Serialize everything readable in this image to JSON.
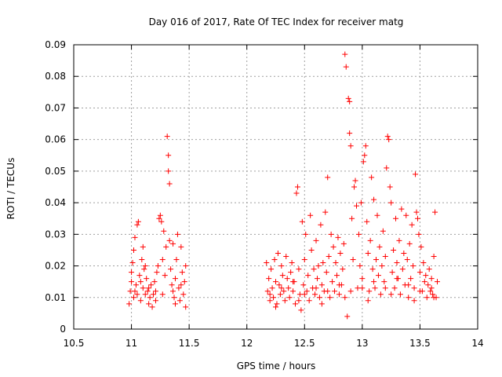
{
  "chart_data": {
    "type": "scatter",
    "title": "Day 016 of 2017, Rate Of TEC Index for receiver matg",
    "xlabel": "GPS time / hours",
    "ylabel": "ROTI / TECUs",
    "xlim": [
      10.5,
      14
    ],
    "ylim": [
      0,
      0.09
    ],
    "xticks": [
      10.5,
      11,
      11.5,
      12,
      12.5,
      13,
      13.5,
      14
    ],
    "xtick_labels": [
      "10.5",
      "11",
      "11.5",
      "12",
      "12.5",
      "13",
      "13.5",
      "14"
    ],
    "yticks": [
      0,
      0.01,
      0.02,
      0.03,
      0.04,
      0.05,
      0.06,
      0.07,
      0.08,
      0.09
    ],
    "ytick_labels": [
      "0",
      "0.01",
      "0.02",
      "0.03",
      "0.04",
      "0.05",
      "0.06",
      "0.07",
      "0.08",
      "0.09"
    ],
    "grid": true,
    "marker": "+",
    "marker_color": "#ff0000",
    "series": [
      {
        "name": "ROTI",
        "points": [
          [
            10.98,
            0.008
          ],
          [
            10.99,
            0.012
          ],
          [
            11.0,
            0.015
          ],
          [
            11.0,
            0.018
          ],
          [
            11.01,
            0.021
          ],
          [
            11.02,
            0.01
          ],
          [
            11.02,
            0.025
          ],
          [
            11.03,
            0.029
          ],
          [
            11.04,
            0.014
          ],
          [
            11.05,
            0.011
          ],
          [
            11.05,
            0.033
          ],
          [
            11.06,
            0.034
          ],
          [
            11.07,
            0.017
          ],
          [
            11.08,
            0.009
          ],
          [
            11.09,
            0.022
          ],
          [
            11.1,
            0.013
          ],
          [
            11.1,
            0.026
          ],
          [
            11.11,
            0.019
          ],
          [
            11.12,
            0.011
          ],
          [
            11.13,
            0.016
          ],
          [
            11.14,
            0.012
          ],
          [
            11.15,
            0.008
          ],
          [
            11.16,
            0.01
          ],
          [
            11.17,
            0.014
          ],
          [
            11.18,
            0.007
          ],
          [
            11.19,
            0.011
          ],
          [
            11.2,
            0.015
          ],
          [
            11.21,
            0.012
          ],
          [
            11.22,
            0.018
          ],
          [
            11.23,
            0.02
          ],
          [
            11.24,
            0.035
          ],
          [
            11.25,
            0.036
          ],
          [
            11.26,
            0.034
          ],
          [
            11.27,
            0.022
          ],
          [
            11.28,
            0.031
          ],
          [
            11.29,
            0.017
          ],
          [
            11.3,
            0.026
          ],
          [
            11.31,
            0.061
          ],
          [
            11.32,
            0.055
          ],
          [
            11.32,
            0.05
          ],
          [
            11.33,
            0.046
          ],
          [
            11.33,
            0.028
          ],
          [
            11.34,
            0.019
          ],
          [
            11.35,
            0.014
          ],
          [
            11.36,
            0.027
          ],
          [
            11.37,
            0.01
          ],
          [
            11.38,
            0.016
          ],
          [
            11.39,
            0.022
          ],
          [
            11.4,
            0.03
          ],
          [
            11.41,
            0.013
          ],
          [
            11.42,
            0.009
          ],
          [
            11.43,
            0.026
          ],
          [
            11.44,
            0.018
          ],
          [
            11.45,
            0.011
          ],
          [
            11.46,
            0.015
          ],
          [
            11.47,
            0.007
          ],
          [
            11.47,
            0.02
          ],
          [
            11.03,
            0.012
          ],
          [
            11.08,
            0.015
          ],
          [
            11.15,
            0.013
          ],
          [
            11.21,
            0.009
          ],
          [
            11.27,
            0.011
          ],
          [
            11.36,
            0.012
          ],
          [
            11.43,
            0.014
          ],
          [
            11.12,
            0.02
          ],
          [
            11.38,
            0.008
          ],
          [
            12.17,
            0.021
          ],
          [
            12.18,
            0.012
          ],
          [
            12.19,
            0.016
          ],
          [
            12.2,
            0.009
          ],
          [
            12.21,
            0.019
          ],
          [
            12.22,
            0.013
          ],
          [
            12.23,
            0.01
          ],
          [
            12.24,
            0.022
          ],
          [
            12.25,
            0.015
          ],
          [
            12.26,
            0.008
          ],
          [
            12.27,
            0.024
          ],
          [
            12.28,
            0.014
          ],
          [
            12.29,
            0.011
          ],
          [
            12.3,
            0.02
          ],
          [
            12.31,
            0.017
          ],
          [
            12.32,
            0.012
          ],
          [
            12.33,
            0.009
          ],
          [
            12.34,
            0.023
          ],
          [
            12.35,
            0.016
          ],
          [
            12.36,
            0.013
          ],
          [
            12.37,
            0.01
          ],
          [
            12.38,
            0.018
          ],
          [
            12.39,
            0.021
          ],
          [
            12.4,
            0.012
          ],
          [
            12.41,
            0.015
          ],
          [
            12.42,
            0.008
          ],
          [
            12.43,
            0.043
          ],
          [
            12.44,
            0.045
          ],
          [
            12.45,
            0.019
          ],
          [
            12.46,
            0.011
          ],
          [
            12.47,
            0.006
          ],
          [
            12.48,
            0.034
          ],
          [
            12.49,
            0.014
          ],
          [
            12.5,
            0.022
          ],
          [
            12.51,
            0.03
          ],
          [
            12.52,
            0.012
          ],
          [
            12.53,
            0.017
          ],
          [
            12.54,
            0.009
          ],
          [
            12.55,
            0.036
          ],
          [
            12.56,
            0.025
          ],
          [
            12.57,
            0.013
          ],
          [
            12.58,
            0.019
          ],
          [
            12.59,
            0.011
          ],
          [
            12.6,
            0.028
          ],
          [
            12.61,
            0.016
          ],
          [
            12.62,
            0.02
          ],
          [
            12.63,
            0.01
          ],
          [
            12.64,
            0.033
          ],
          [
            12.65,
            0.014
          ],
          [
            12.66,
            0.021
          ],
          [
            12.67,
            0.012
          ],
          [
            12.68,
            0.037
          ],
          [
            12.69,
            0.018
          ],
          [
            12.7,
            0.048
          ],
          [
            12.71,
            0.023
          ],
          [
            12.72,
            0.01
          ],
          [
            12.73,
            0.03
          ],
          [
            12.74,
            0.015
          ],
          [
            12.75,
            0.026
          ],
          [
            12.76,
            0.012
          ],
          [
            12.77,
            0.021
          ],
          [
            12.78,
            0.017
          ],
          [
            12.79,
            0.029
          ],
          [
            12.8,
            0.011
          ],
          [
            12.81,
            0.024
          ],
          [
            12.82,
            0.014
          ],
          [
            12.83,
            0.019
          ],
          [
            12.84,
            0.027
          ],
          [
            12.85,
            0.087
          ],
          [
            12.86,
            0.083
          ],
          [
            12.87,
            0.004
          ],
          [
            12.88,
            0.073
          ],
          [
            12.89,
            0.072
          ],
          [
            12.89,
            0.062
          ],
          [
            12.9,
            0.058
          ],
          [
            12.91,
            0.035
          ],
          [
            12.92,
            0.022
          ],
          [
            12.93,
            0.045
          ],
          [
            12.94,
            0.047
          ],
          [
            12.95,
            0.039
          ],
          [
            12.96,
            0.013
          ],
          [
            12.97,
            0.03
          ],
          [
            12.98,
            0.02
          ],
          [
            12.99,
            0.04
          ],
          [
            13.0,
            0.016
          ],
          [
            13.01,
            0.053
          ],
          [
            13.02,
            0.055
          ],
          [
            13.03,
            0.058
          ],
          [
            13.04,
            0.034
          ],
          [
            13.05,
            0.024
          ],
          [
            13.06,
            0.012
          ],
          [
            13.07,
            0.028
          ],
          [
            13.08,
            0.048
          ],
          [
            13.09,
            0.019
          ],
          [
            13.1,
            0.041
          ],
          [
            13.11,
            0.013
          ],
          [
            13.12,
            0.022
          ],
          [
            13.13,
            0.036
          ],
          [
            13.14,
            0.017
          ],
          [
            13.15,
            0.026
          ],
          [
            13.16,
            0.011
          ],
          [
            13.17,
            0.02
          ],
          [
            13.18,
            0.031
          ],
          [
            13.19,
            0.015
          ],
          [
            13.2,
            0.023
          ],
          [
            13.21,
            0.051
          ],
          [
            13.22,
            0.061
          ],
          [
            13.23,
            0.06
          ],
          [
            13.24,
            0.045
          ],
          [
            13.25,
            0.04
          ],
          [
            13.26,
            0.018
          ],
          [
            13.27,
            0.025
          ],
          [
            13.28,
            0.013
          ],
          [
            13.29,
            0.035
          ],
          [
            13.3,
            0.021
          ],
          [
            13.31,
            0.016
          ],
          [
            13.32,
            0.028
          ],
          [
            13.33,
            0.011
          ],
          [
            13.34,
            0.038
          ],
          [
            13.35,
            0.019
          ],
          [
            13.36,
            0.024
          ],
          [
            13.37,
            0.014
          ],
          [
            13.38,
            0.036
          ],
          [
            13.39,
            0.022
          ],
          [
            13.4,
            0.01
          ],
          [
            13.41,
            0.027
          ],
          [
            13.42,
            0.016
          ],
          [
            13.43,
            0.033
          ],
          [
            13.44,
            0.02
          ],
          [
            13.45,
            0.013
          ],
          [
            13.46,
            0.049
          ],
          [
            13.47,
            0.037
          ],
          [
            13.48,
            0.035
          ],
          [
            13.49,
            0.03
          ],
          [
            13.5,
            0.018
          ],
          [
            13.51,
            0.026
          ],
          [
            13.52,
            0.012
          ],
          [
            13.53,
            0.021
          ],
          [
            13.54,
            0.015
          ],
          [
            13.55,
            0.017
          ],
          [
            13.56,
            0.01
          ],
          [
            13.57,
            0.014
          ],
          [
            13.58,
            0.019
          ],
          [
            13.59,
            0.012
          ],
          [
            13.6,
            0.016
          ],
          [
            13.61,
            0.011
          ],
          [
            13.62,
            0.023
          ],
          [
            13.63,
            0.037
          ],
          [
            13.64,
            0.01
          ],
          [
            13.65,
            0.015
          ],
          [
            12.2,
            0.011
          ],
          [
            12.3,
            0.013
          ],
          [
            12.4,
            0.015
          ],
          [
            12.5,
            0.011
          ],
          [
            12.6,
            0.013
          ],
          [
            12.7,
            0.012
          ],
          [
            12.8,
            0.014
          ],
          [
            12.9,
            0.012
          ],
          [
            13.0,
            0.013
          ],
          [
            13.1,
            0.015
          ],
          [
            13.2,
            0.013
          ],
          [
            13.3,
            0.016
          ],
          [
            13.4,
            0.014
          ],
          [
            13.5,
            0.012
          ],
          [
            13.6,
            0.013
          ],
          [
            12.25,
            0.007
          ],
          [
            12.45,
            0.009
          ],
          [
            12.65,
            0.008
          ],
          [
            12.85,
            0.01
          ],
          [
            13.05,
            0.009
          ],
          [
            13.25,
            0.011
          ],
          [
            13.45,
            0.009
          ],
          [
            13.62,
            0.01
          ]
        ]
      }
    ]
  }
}
